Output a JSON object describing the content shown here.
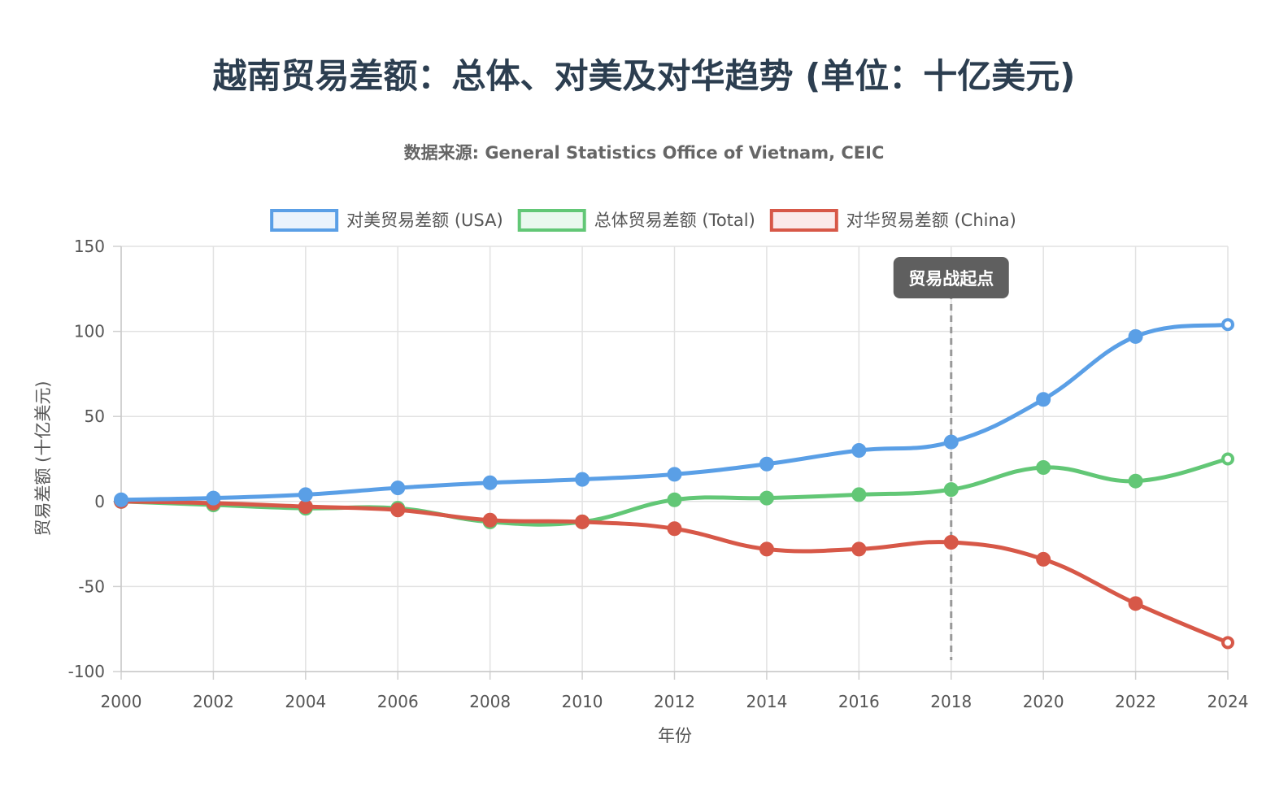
{
  "chart_data": {
    "type": "line",
    "title": "越南贸易差额：总体、对美及对华趋势 (单位：十亿美元)",
    "subtitle": "数据来源: General Statistics Office of Vietnam, CEIC",
    "xlabel": "年份",
    "ylabel": "贸易差额 (十亿美元)",
    "x": [
      2000,
      2002,
      2004,
      2006,
      2008,
      2010,
      2012,
      2014,
      2016,
      2018,
      2020,
      2022,
      2024
    ],
    "x_tick_labels": [
      "2000",
      "2002",
      "2004",
      "2006",
      "2008",
      "2010",
      "2012",
      "2014",
      "2016",
      "2018",
      "2020",
      "2022",
      "2024"
    ],
    "ylim": [
      -100,
      150
    ],
    "y_ticks": [
      -100,
      -50,
      0,
      50,
      100,
      150
    ],
    "y_tick_labels": [
      "-100",
      "-50",
      "0",
      "50",
      "100",
      "150"
    ],
    "grid": true,
    "legend_position": "top",
    "series": [
      {
        "name": "对美贸易差额 (USA)",
        "color": "#5a9fe6",
        "fill": "#eaf3fc",
        "values": [
          1,
          2,
          4,
          8,
          11,
          13,
          16,
          22,
          30,
          35,
          60,
          97,
          104
        ]
      },
      {
        "name": "总体贸易差额 (Total)",
        "color": "#62c776",
        "fill": "#eaf8ee",
        "values": [
          0,
          -2,
          -4,
          -4,
          -12,
          -12,
          1,
          2,
          4,
          7,
          20,
          12,
          25
        ]
      },
      {
        "name": "对华贸易差额 (China)",
        "color": "#d75848",
        "fill": "#fbeaea",
        "values": [
          0,
          -1,
          -3,
          -5,
          -11,
          -12,
          -16,
          -28,
          -28,
          -24,
          -34,
          -60,
          -83
        ]
      }
    ],
    "annotation": {
      "x": 2018,
      "label": "贸易战起点",
      "line_color": "#999999",
      "box_color": "#5f5f5f",
      "text_color": "#ffffff"
    }
  }
}
